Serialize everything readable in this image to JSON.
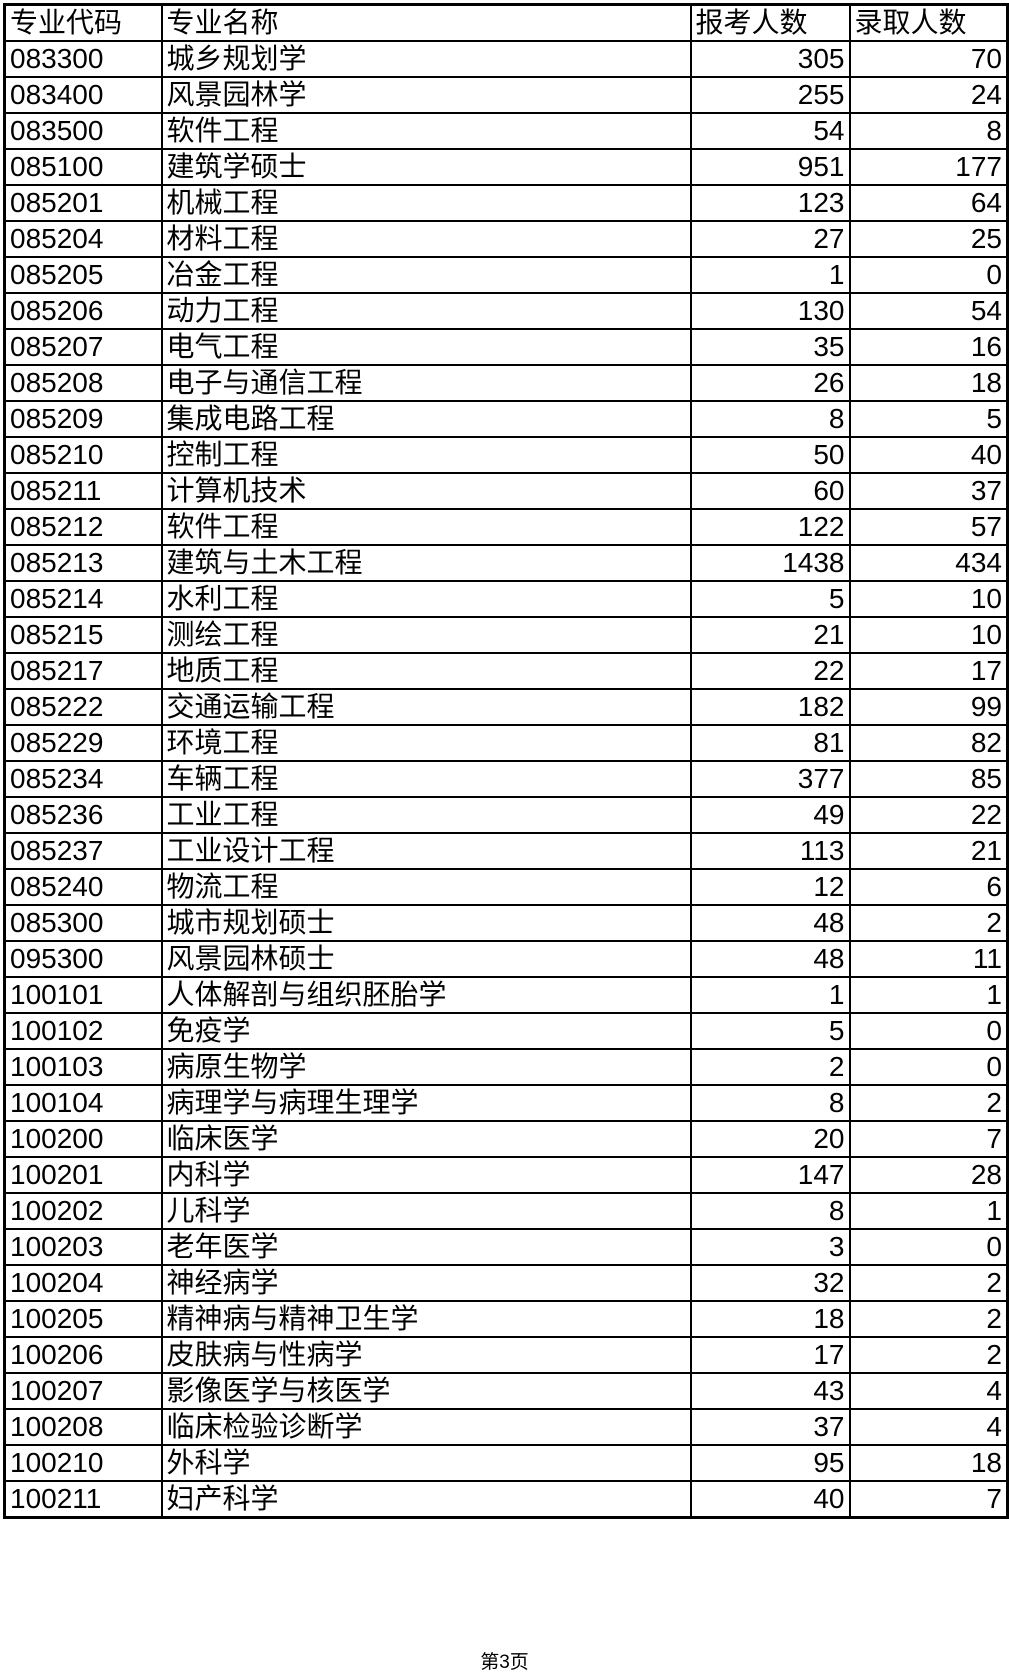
{
  "table": {
    "headers": [
      "专业代码",
      "专业名称",
      "报考人数",
      "录取人数"
    ],
    "rows": [
      [
        "083300",
        "城乡规划学",
        "305",
        "70"
      ],
      [
        "083400",
        "风景园林学",
        "255",
        "24"
      ],
      [
        "083500",
        "软件工程",
        "54",
        "8"
      ],
      [
        "085100",
        "建筑学硕士",
        "951",
        "177"
      ],
      [
        "085201",
        "机械工程",
        "123",
        "64"
      ],
      [
        "085204",
        "材料工程",
        "27",
        "25"
      ],
      [
        "085205",
        "冶金工程",
        "1",
        "0"
      ],
      [
        "085206",
        "动力工程",
        "130",
        "54"
      ],
      [
        "085207",
        "电气工程",
        "35",
        "16"
      ],
      [
        "085208",
        "电子与通信工程",
        "26",
        "18"
      ],
      [
        "085209",
        "集成电路工程",
        "8",
        "5"
      ],
      [
        "085210",
        "控制工程",
        "50",
        "40"
      ],
      [
        "085211",
        "计算机技术",
        "60",
        "37"
      ],
      [
        "085212",
        "软件工程",
        "122",
        "57"
      ],
      [
        "085213",
        "建筑与土木工程",
        "1438",
        "434"
      ],
      [
        "085214",
        "水利工程",
        "5",
        "10"
      ],
      [
        "085215",
        "测绘工程",
        "21",
        "10"
      ],
      [
        "085217",
        "地质工程",
        "22",
        "17"
      ],
      [
        "085222",
        "交通运输工程",
        "182",
        "99"
      ],
      [
        "085229",
        "环境工程",
        "81",
        "82"
      ],
      [
        "085234",
        "车辆工程",
        "377",
        "85"
      ],
      [
        "085236",
        "工业工程",
        "49",
        "22"
      ],
      [
        "085237",
        "工业设计工程",
        "113",
        "21"
      ],
      [
        "085240",
        "物流工程",
        "12",
        "6"
      ],
      [
        "085300",
        "城市规划硕士",
        "48",
        "2"
      ],
      [
        "095300",
        "风景园林硕士",
        "48",
        "11"
      ],
      [
        "100101",
        "人体解剖与组织胚胎学",
        "1",
        "1"
      ],
      [
        "100102",
        "免疫学",
        "5",
        "0"
      ],
      [
        "100103",
        "病原生物学",
        "2",
        "0"
      ],
      [
        "100104",
        "病理学与病理生理学",
        "8",
        "2"
      ],
      [
        "100200",
        "临床医学",
        "20",
        "7"
      ],
      [
        "100201",
        "内科学",
        "147",
        "28"
      ],
      [
        "100202",
        "儿科学",
        "8",
        "1"
      ],
      [
        "100203",
        "老年医学",
        "3",
        "0"
      ],
      [
        "100204",
        "神经病学",
        "32",
        "2"
      ],
      [
        "100205",
        "精神病与精神卫生学",
        "18",
        "2"
      ],
      [
        "100206",
        "皮肤病与性病学",
        "17",
        "2"
      ],
      [
        "100207",
        "影像医学与核医学",
        "43",
        "4"
      ],
      [
        "100208",
        "临床检验诊断学",
        "37",
        "4"
      ],
      [
        "100210",
        "外科学",
        "95",
        "18"
      ],
      [
        "100211",
        "妇产科学",
        "40",
        "7"
      ]
    ]
  },
  "footer": {
    "page_label": "第3页"
  }
}
